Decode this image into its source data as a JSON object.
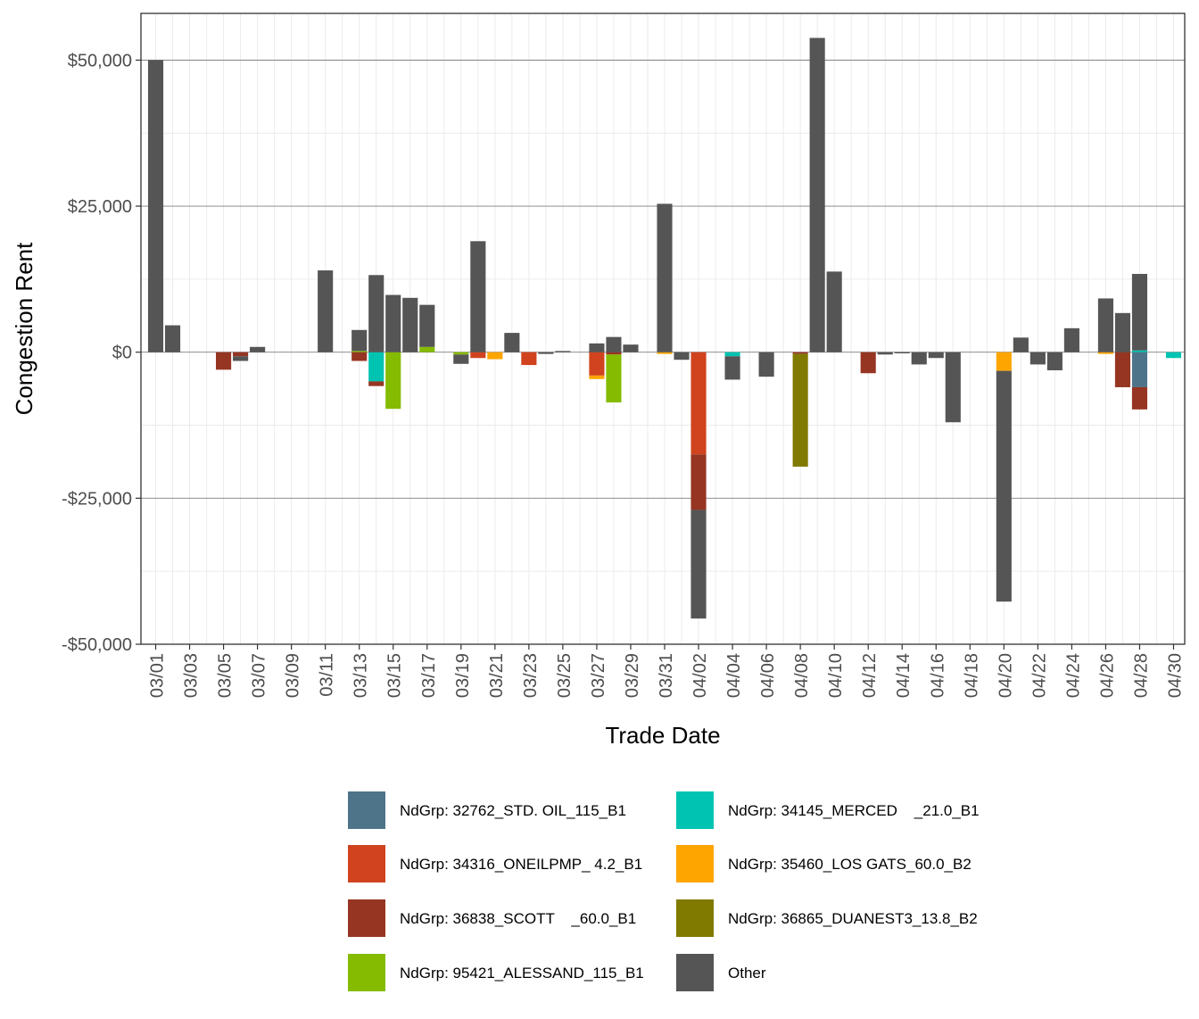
{
  "chart_data": {
    "type": "bar",
    "stacked": true,
    "xlabel": "Trade Date",
    "ylabel": "Congestion Rent",
    "ylim": [
      -50000,
      58000
    ],
    "yticks": [
      -50000,
      -25000,
      0,
      25000,
      50000
    ],
    "ytick_labels": [
      "-$50,000",
      "-$25,000",
      "$0",
      "$25,000",
      "$50,000"
    ],
    "categories": [
      "03/01",
      "03/02",
      "03/03",
      "03/04",
      "03/05",
      "03/06",
      "03/07",
      "03/08",
      "03/09",
      "03/10",
      "03/11",
      "03/12",
      "03/13",
      "03/14",
      "03/15",
      "03/16",
      "03/17",
      "03/18",
      "03/19",
      "03/20",
      "03/21",
      "03/22",
      "03/23",
      "03/24",
      "03/25",
      "03/26",
      "03/27",
      "03/28",
      "03/29",
      "03/30",
      "03/31",
      "04/01",
      "04/02",
      "04/03",
      "04/04",
      "04/05",
      "04/06",
      "04/07",
      "04/08",
      "04/09",
      "04/10",
      "04/11",
      "04/12",
      "04/13",
      "04/14",
      "04/15",
      "04/16",
      "04/17",
      "04/18",
      "04/19",
      "04/20",
      "04/21",
      "04/22",
      "04/23",
      "04/24",
      "04/25",
      "04/26",
      "04/27",
      "04/28",
      "04/29",
      "04/30"
    ],
    "xtick_labels": [
      "03/01",
      "03/03",
      "03/05",
      "03/07",
      "03/09",
      "03/11",
      "03/13",
      "03/15",
      "03/17",
      "03/19",
      "03/21",
      "03/23",
      "03/25",
      "03/27",
      "03/29",
      "03/31",
      "04/02",
      "04/04",
      "04/06",
      "04/08",
      "04/10",
      "04/12",
      "04/14",
      "04/16",
      "04/18",
      "04/20",
      "04/22",
      "04/24",
      "04/26",
      "04/28",
      "04/30"
    ],
    "legend_position": "bottom",
    "grid": true,
    "series": [
      {
        "name": "NdGrp: 32762_STD. OIL_115_B1",
        "color": "#4e7489",
        "values": [
          0,
          0,
          0,
          0,
          0,
          0,
          0,
          0,
          0,
          0,
          0,
          0,
          0,
          0,
          0,
          0,
          0,
          0,
          0,
          0,
          0,
          0,
          0,
          0,
          0,
          0,
          0,
          0,
          0,
          0,
          0,
          0,
          0,
          0,
          0,
          0,
          0,
          0,
          0,
          0,
          0,
          0,
          0,
          0,
          0,
          0,
          0,
          0,
          0,
          0,
          0,
          0,
          0,
          0,
          0,
          0,
          0,
          0,
          -6000,
          0,
          0
        ]
      },
      {
        "name": "NdGrp: 34145_MERCED    _21.0_B1",
        "color": "#00c3b1",
        "values": [
          0,
          0,
          0,
          0,
          0,
          0,
          0,
          0,
          0,
          0,
          0,
          0,
          0,
          -5000,
          0,
          0,
          0,
          0,
          0,
          0,
          0,
          0,
          0,
          0,
          0,
          0,
          0,
          0,
          0,
          0,
          0,
          0,
          0,
          0,
          -700,
          0,
          0,
          0,
          0,
          0,
          0,
          0,
          0,
          0,
          0,
          0,
          0,
          0,
          0,
          0,
          0,
          0,
          0,
          0,
          0,
          0,
          0,
          0,
          300,
          0,
          -1000
        ]
      },
      {
        "name": "NdGrp: 34316_ONEILPMP_ 4.2_B1",
        "color": "#d0431e",
        "values": [
          0,
          0,
          0,
          0,
          0,
          0,
          0,
          0,
          0,
          0,
          0,
          0,
          0,
          0,
          0,
          0,
          0,
          0,
          0,
          -1000,
          0,
          0,
          -2200,
          0,
          0,
          0,
          -4000,
          0,
          0,
          0,
          0,
          0,
          -17500,
          0,
          0,
          0,
          0,
          0,
          0,
          0,
          0,
          0,
          0,
          0,
          0,
          0,
          0,
          0,
          0,
          0,
          0,
          0,
          0,
          0,
          0,
          0,
          0,
          0,
          0,
          0,
          0
        ]
      },
      {
        "name": "NdGrp: 35460_LOS GATS_60.0_B2",
        "color": "#ffa500",
        "values": [
          0,
          0,
          0,
          0,
          0,
          0,
          0,
          0,
          0,
          0,
          0,
          0,
          0,
          0,
          0,
          0,
          0,
          0,
          0,
          0,
          -1200,
          0,
          0,
          0,
          0,
          0,
          -600,
          0,
          0,
          0,
          -300,
          0,
          0,
          0,
          0,
          0,
          0,
          0,
          0,
          0,
          0,
          0,
          0,
          0,
          0,
          0,
          0,
          0,
          0,
          0,
          -3200,
          0,
          0,
          0,
          0,
          0,
          -300,
          0,
          0,
          0,
          0
        ]
      },
      {
        "name": "NdGrp: 36838_SCOTT    _60.0_B1",
        "color": "#953522",
        "values": [
          0,
          0,
          0,
          0,
          -3000,
          -700,
          0,
          0,
          0,
          0,
          0,
          0,
          -1500,
          -800,
          0,
          0,
          0,
          0,
          0,
          0,
          0,
          0,
          0,
          0,
          0,
          0,
          0,
          -400,
          0,
          0,
          0,
          0,
          -9500,
          0,
          0,
          0,
          0,
          0,
          -300,
          0,
          0,
          0,
          -3600,
          0,
          0,
          0,
          0,
          0,
          0,
          0,
          0,
          0,
          0,
          0,
          0,
          0,
          0,
          -6000,
          -3800,
          0,
          0
        ]
      },
      {
        "name": "NdGrp: 36865_DUANEST3_13.8_B2",
        "color": "#817a00",
        "values": [
          0,
          0,
          0,
          0,
          0,
          0,
          0,
          0,
          0,
          0,
          0,
          0,
          0,
          0,
          0,
          0,
          0,
          0,
          0,
          0,
          0,
          0,
          0,
          0,
          0,
          0,
          0,
          0,
          0,
          0,
          0,
          0,
          0,
          0,
          0,
          0,
          0,
          0,
          -19300,
          0,
          0,
          0,
          0,
          0,
          0,
          0,
          0,
          0,
          0,
          0,
          0,
          0,
          0,
          0,
          0,
          0,
          0,
          0,
          0,
          0,
          0
        ]
      },
      {
        "name": "NdGrp: 95421_ALESSAND_115_B1",
        "color": "#85bb00",
        "values": [
          0,
          0,
          0,
          0,
          0,
          0,
          0,
          0,
          0,
          0,
          0,
          0,
          200,
          0,
          -9700,
          0,
          900,
          0,
          -400,
          0,
          0,
          0,
          0,
          0,
          0,
          0,
          0,
          -8200,
          0,
          0,
          0,
          0,
          0,
          0,
          0,
          0,
          0,
          0,
          0,
          0,
          0,
          0,
          0,
          0,
          0,
          0,
          0,
          0,
          0,
          0,
          0,
          0,
          0,
          0,
          0,
          0,
          0,
          0,
          0,
          0,
          0
        ]
      },
      {
        "name": "Other",
        "color": "#555555",
        "values": [
          50000,
          4600,
          0,
          0,
          0,
          -800,
          900,
          0,
          0,
          0,
          14000,
          0,
          3600,
          13200,
          9800,
          9300,
          7200,
          0,
          -1600,
          19000,
          0,
          3300,
          0,
          -300,
          200,
          0,
          1500,
          2600,
          1300,
          0,
          25400,
          -1300,
          -18600,
          0,
          -4000,
          0,
          -4200,
          0,
          0,
          53800,
          13800,
          0,
          0,
          -400,
          -200,
          -2100,
          -1000,
          -12000,
          0,
          0,
          -39500,
          2500,
          -2100,
          -3100,
          4100,
          0,
          9200,
          6700,
          13100,
          0,
          0
        ]
      }
    ]
  }
}
